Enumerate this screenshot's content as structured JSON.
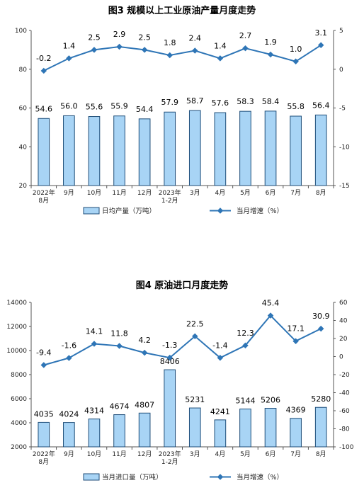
{
  "colors": {
    "bar_fill": "#a8d4f5",
    "bar_stroke": "#1f4e79",
    "line": "#2e75b6",
    "axis": "#555555"
  },
  "chart_data": [
    {
      "type": "bar",
      "title": "图3  规模以上工业原油产量月度走势",
      "categories": [
        [
          "2022年",
          "8月"
        ],
        [
          "9月"
        ],
        [
          "10月"
        ],
        [
          "11月"
        ],
        [
          "12月"
        ],
        [
          "2023年",
          "1-2月"
        ],
        [
          "3月"
        ],
        [
          "4月"
        ],
        [
          "5月"
        ],
        [
          "6月"
        ],
        [
          "7月"
        ],
        [
          "8月"
        ]
      ],
      "series": [
        {
          "name": "日均产量（万吨）",
          "type": "bar",
          "axis": "left",
          "values": [
            54.6,
            56.0,
            55.6,
            55.9,
            54.4,
            57.9,
            58.7,
            57.6,
            58.3,
            58.4,
            55.8,
            56.4
          ],
          "labels": [
            "54.6",
            "56.0",
            "55.6",
            "55.9",
            "54.4",
            "57.9",
            "58.7",
            "57.6",
            "58.3",
            "58.4",
            "55.8",
            "56.4"
          ]
        },
        {
          "name": "当月增速（%）",
          "type": "line",
          "axis": "right",
          "values": [
            -0.2,
            1.4,
            2.5,
            2.9,
            2.5,
            1.8,
            2.4,
            1.4,
            2.7,
            1.9,
            1.0,
            3.1
          ],
          "labels": [
            "-0.2",
            "1.4",
            "2.5",
            "2.9",
            "2.5",
            "1.8",
            "2.4",
            "1.4",
            "2.7",
            "1.9",
            "1.0",
            "3.1"
          ]
        }
      ],
      "y_left": {
        "range": [
          20,
          100
        ],
        "ticks": [
          "20",
          "40",
          "60",
          "80",
          "100"
        ]
      },
      "y_right": {
        "range": [
          -15,
          5
        ],
        "ticks": [
          "-15",
          "-10",
          "-5",
          "0",
          "5"
        ]
      },
      "grid": false,
      "legend_position": "bottom"
    },
    {
      "type": "bar",
      "title": "图4  原油进口月度走势",
      "categories": [
        [
          "2022年",
          "8月"
        ],
        [
          "9月"
        ],
        [
          "10月"
        ],
        [
          "11月"
        ],
        [
          "12月"
        ],
        [
          "2023年",
          "1-2月"
        ],
        [
          "3月"
        ],
        [
          "4月"
        ],
        [
          "5月"
        ],
        [
          "6月"
        ],
        [
          "7月"
        ],
        [
          "8月"
        ]
      ],
      "series": [
        {
          "name": "当月进口量（万吨）",
          "type": "bar",
          "axis": "left",
          "values": [
            4035,
            4024,
            4314,
            4674,
            4807,
            8406,
            5231,
            4241,
            5144,
            5206,
            4369,
            5280
          ],
          "labels": [
            "4035",
            "4024",
            "4314",
            "4674",
            "4807",
            "8406",
            "5231",
            "4241",
            "5144",
            "5206",
            "4369",
            "5280"
          ]
        },
        {
          "name": "当月增速（%）",
          "type": "line",
          "axis": "right",
          "values": [
            -9.4,
            -1.6,
            14.1,
            11.8,
            4.2,
            -1.3,
            22.5,
            -1.4,
            12.3,
            45.4,
            17.1,
            30.9
          ],
          "labels": [
            "-9.4",
            "-1.6",
            "14.1",
            "11.8",
            "4.2",
            "-1.3",
            "22.5",
            "-1.4",
            "12.3",
            "45.4",
            "17.1",
            "30.9"
          ]
        }
      ],
      "y_left": {
        "range": [
          2000,
          14000
        ],
        "ticks": [
          "2000",
          "4000",
          "6000",
          "8000",
          "10000",
          "12000",
          "14000"
        ]
      },
      "y_right": {
        "range": [
          -100,
          60
        ],
        "ticks": [
          "-100",
          "-80",
          "-60",
          "-40",
          "-20",
          "0",
          "20",
          "40",
          "60"
        ]
      },
      "grid": false,
      "legend_position": "bottom"
    }
  ]
}
